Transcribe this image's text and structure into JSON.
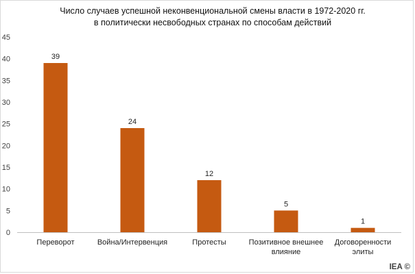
{
  "chart_data": {
    "type": "bar",
    "title_line1": "Число случаев успешной неконвенциональной смены власти в 1972-2020 гг.",
    "title_line2": "в политически несвободных странах по способам действий",
    "categories": [
      [
        "Переворот"
      ],
      [
        "Война/Интервенция"
      ],
      [
        "Протесты"
      ],
      [
        "Позитивное внешнее",
        "влияние"
      ],
      [
        "Договоренности",
        "элиты"
      ]
    ],
    "values": [
      39,
      24,
      12,
      5,
      1
    ],
    "ylim": [
      0,
      45
    ],
    "yticks": [
      0,
      5,
      10,
      15,
      20,
      25,
      30,
      35,
      40,
      45
    ],
    "bar_color": "#c55a11",
    "grid": false,
    "legend": "none"
  },
  "brand": "IEA ©"
}
